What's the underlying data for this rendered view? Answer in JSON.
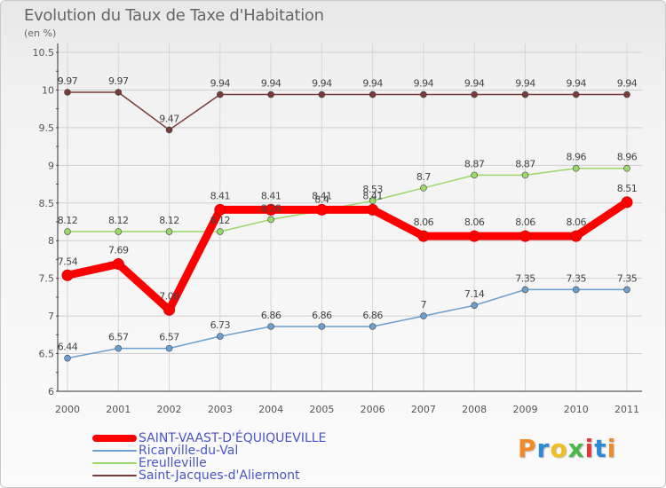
{
  "chart_title": "Evolution du Taux de Taxe d'Habitation",
  "chart_unit": "(en %)",
  "brand": "Proxiti",
  "brand_colors": [
    "#f08a2a",
    "#2a8ad8",
    "#f0c020",
    "#4cb848",
    "#e03a3a",
    "#2a8ad8",
    "#f08a2a"
  ],
  "chart_data": {
    "type": "line",
    "title": "Evolution du Taux de Taxe d'Habitation",
    "ylabel": "(en %)",
    "xlabel": "",
    "ylim": [
      6,
      10.5
    ],
    "yticks": [
      "6",
      "6.5",
      "7",
      "7.5",
      "8",
      "8.5",
      "9",
      "9.5",
      "10",
      "10.5"
    ],
    "categories": [
      "2000",
      "2001",
      "2002",
      "2003",
      "2004",
      "2005",
      "2006",
      "2007",
      "2008",
      "2009",
      "2010",
      "2011"
    ],
    "grid": true,
    "legend_position": "bottom-left",
    "series": [
      {
        "name": "SAINT-VAAST-D'ÉQUIQUEVILLE",
        "color": "#ff0000",
        "values": [
          7.54,
          7.69,
          7.08,
          8.41,
          8.41,
          8.41,
          8.41,
          8.06,
          8.06,
          8.06,
          8.06,
          8.51
        ],
        "labels": [
          "7.54",
          "7.69",
          "7.08",
          "8.41",
          "8.41",
          "8.41",
          "8.41",
          "8.06",
          "8.06",
          "8.06",
          "8.06",
          "8.51"
        ]
      },
      {
        "name": "Ricarville-du-Val",
        "color": "#6a9fd0",
        "values": [
          6.44,
          6.57,
          6.57,
          6.73,
          6.86,
          6.86,
          6.86,
          7,
          7.14,
          7.35,
          7.35,
          7.35
        ],
        "labels": [
          "6.44",
          "6.57",
          "6.57",
          "6.73",
          "6.86",
          "6.86",
          "6.86",
          "7",
          "7.14",
          "7.35",
          "7.35",
          "7.35"
        ]
      },
      {
        "name": "Ereulleville",
        "color": "#9ad86a",
        "values": [
          8.12,
          8.12,
          8.12,
          8.12,
          8.28,
          8.4,
          8.53,
          8.7,
          8.87,
          8.87,
          8.96,
          8.96
        ],
        "labels": [
          "8.12",
          "8.12",
          "8.12",
          "8.12",
          "8.28",
          "8.4",
          "8.53",
          "8.7",
          "8.87",
          "8.87",
          "8.96",
          "8.96"
        ]
      },
      {
        "name": "Saint-Jacques-d'Aliermont",
        "color": "#7a3a3a",
        "values": [
          9.97,
          9.97,
          9.47,
          9.94,
          9.94,
          9.94,
          9.94,
          9.94,
          9.94,
          9.94,
          9.94,
          9.94
        ],
        "labels": [
          "9.97",
          "9.97",
          "9.47",
          "9.94",
          "9.94",
          "9.94",
          "9.94",
          "9.94",
          "9.94",
          "9.94",
          "9.94",
          "9.94"
        ]
      }
    ]
  }
}
